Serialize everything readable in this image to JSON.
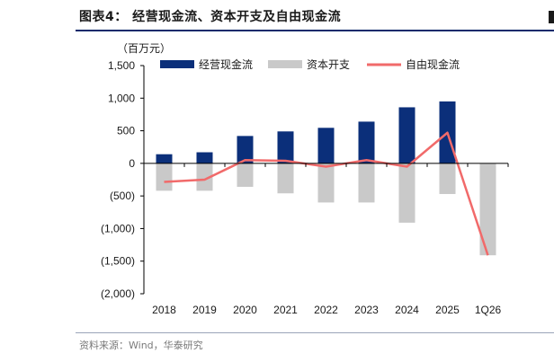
{
  "header": {
    "title": "图表4：   经营现金流、资本开支及自由现金流"
  },
  "source": "资料来源：Wind，华泰研究",
  "chart_data": {
    "type": "bar",
    "unit_label": "（百万元）",
    "categories": [
      "2018",
      "2019",
      "2020",
      "2021",
      "2022",
      "2023",
      "2024",
      "2025",
      "1Q26"
    ],
    "ylim": [
      -2000,
      1500
    ],
    "yticks": [
      1500,
      1000,
      500,
      0,
      -500,
      -1000,
      -1500,
      -2000
    ],
    "ytick_labels": [
      "1,500",
      "1,000",
      "500",
      "0",
      "(500)",
      "(1,000)",
      "(1,500)",
      "(2,000)"
    ],
    "legend_position": "top",
    "series": [
      {
        "name": "经营现金流",
        "kind": "bar",
        "color": "#0b2f7a",
        "values": [
          140,
          170,
          420,
          490,
          545,
          640,
          860,
          950,
          -100
        ]
      },
      {
        "name": "资本开支",
        "kind": "bar",
        "color": "#c9c9c9",
        "values": [
          -420,
          -420,
          -360,
          -460,
          -600,
          -600,
          -910,
          -470,
          -1410
        ]
      },
      {
        "name": "自由现金流",
        "kind": "line",
        "color": "#f16a6a",
        "values": [
          -285,
          -250,
          50,
          40,
          -50,
          50,
          -50,
          470,
          -1410
        ]
      }
    ]
  }
}
